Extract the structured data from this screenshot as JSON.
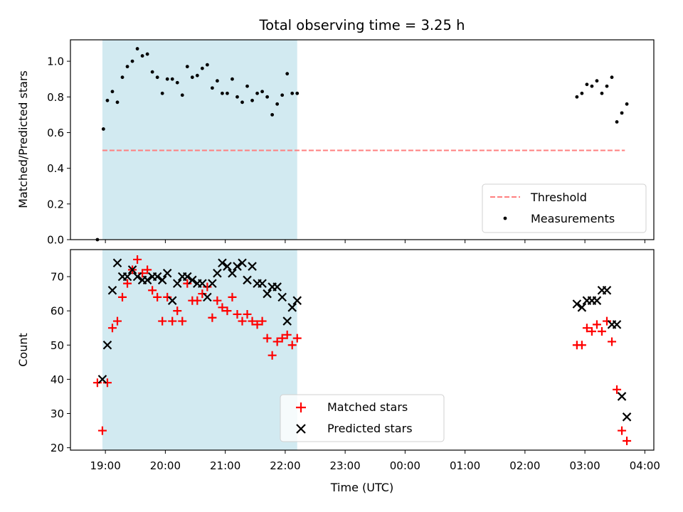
{
  "title": "Total observing time = 3.25 h",
  "xlabel": "Time (UTC)",
  "x_ticks": [
    "19:00",
    "20:00",
    "21:00",
    "22:00",
    "23:00",
    "00:00",
    "01:00",
    "02:00",
    "03:00",
    "04:00"
  ],
  "chart_data": [
    {
      "type": "scatter",
      "ylabel": "Matched/Predicted stars",
      "ylim": [
        0,
        1.12
      ],
      "y_ticks": [
        "0.0",
        "0.2",
        "0.4",
        "0.6",
        "0.8",
        "1.0"
      ],
      "legend_position": "lower-right",
      "shaded_span": {
        "x_start": "18:57",
        "x_end": "22:12",
        "color": "#add8e6"
      },
      "threshold": {
        "name": "Threshold",
        "y": 0.5,
        "x_start": "18:57",
        "x_end": "03:40",
        "color": "#ff7f7f",
        "style": "dashed"
      },
      "series": [
        {
          "name": "Measurements",
          "marker": "dot",
          "color": "#000000",
          "x": [
            "18:52",
            "18:58",
            "19:02",
            "19:07",
            "19:12",
            "19:17",
            "19:22",
            "19:27",
            "19:32",
            "19:37",
            "19:42",
            "19:47",
            "19:52",
            "19:57",
            "20:02",
            "20:07",
            "20:12",
            "20:17",
            "20:22",
            "20:27",
            "20:32",
            "20:37",
            "20:42",
            "20:47",
            "20:52",
            "20:57",
            "21:02",
            "21:07",
            "21:12",
            "21:17",
            "21:22",
            "21:27",
            "21:32",
            "21:37",
            "21:42",
            "21:47",
            "21:52",
            "21:57",
            "22:02",
            "22:07",
            "22:12",
            "02:52",
            "02:57",
            "03:02",
            "03:07",
            "03:12",
            "03:17",
            "03:22",
            "03:27",
            "03:32",
            "03:37",
            "03:42"
          ],
          "y": [
            0.0,
            0.62,
            0.78,
            0.83,
            0.77,
            0.91,
            0.97,
            1.0,
            1.07,
            1.03,
            1.04,
            0.94,
            0.91,
            0.82,
            0.9,
            0.9,
            0.88,
            0.81,
            0.97,
            0.91,
            0.92,
            0.96,
            0.98,
            0.85,
            0.89,
            0.82,
            0.82,
            0.9,
            0.8,
            0.77,
            0.86,
            0.78,
            0.82,
            0.83,
            0.8,
            0.7,
            0.76,
            0.81,
            0.93,
            0.82,
            0.82,
            0.8,
            0.82,
            0.87,
            0.86,
            0.89,
            0.82,
            0.86,
            0.91,
            0.66,
            0.71,
            0.76
          ]
        }
      ]
    },
    {
      "type": "scatter",
      "ylabel": "Count",
      "ylim": [
        19.3,
        77.9
      ],
      "y_ticks": [
        "20",
        "30",
        "40",
        "50",
        "60",
        "70"
      ],
      "legend_position": "lower-center",
      "shaded_span": {
        "x_start": "18:57",
        "x_end": "22:12",
        "color": "#add8e6"
      },
      "series": [
        {
          "name": "Matched stars",
          "marker": "plus",
          "color": "#ff0000",
          "x": [
            "18:52",
            "18:57",
            "19:02",
            "19:07",
            "19:12",
            "19:17",
            "19:22",
            "19:27",
            "19:32",
            "19:37",
            "19:42",
            "19:47",
            "19:52",
            "19:57",
            "20:02",
            "20:07",
            "20:12",
            "20:17",
            "20:22",
            "20:27",
            "20:32",
            "20:37",
            "20:42",
            "20:47",
            "20:52",
            "20:57",
            "21:02",
            "21:07",
            "21:12",
            "21:17",
            "21:22",
            "21:27",
            "21:32",
            "21:37",
            "21:42",
            "21:47",
            "21:52",
            "21:57",
            "22:02",
            "22:07",
            "22:12",
            "02:52",
            "02:57",
            "03:02",
            "03:07",
            "03:12",
            "03:17",
            "03:22",
            "03:27",
            "03:32",
            "03:37",
            "03:42"
          ],
          "y": [
            39,
            25,
            39,
            55,
            57,
            64,
            68,
            72,
            75,
            71,
            72,
            66,
            64,
            57,
            64,
            57,
            60,
            57,
            68,
            63,
            63,
            65,
            67,
            58,
            63,
            61,
            60,
            64,
            59,
            57,
            59,
            57,
            56,
            57,
            52,
            47,
            51,
            52,
            53,
            50,
            52,
            50,
            50,
            55,
            54,
            56,
            54,
            57,
            51,
            37,
            25,
            22
          ]
        },
        {
          "name": "Predicted stars",
          "marker": "x",
          "color": "#000000",
          "x": [
            "18:57",
            "19:02",
            "19:07",
            "19:12",
            "19:17",
            "19:22",
            "19:27",
            "19:32",
            "19:37",
            "19:42",
            "19:47",
            "19:52",
            "19:57",
            "20:02",
            "20:07",
            "20:12",
            "20:17",
            "20:22",
            "20:27",
            "20:32",
            "20:37",
            "20:42",
            "20:47",
            "20:52",
            "20:57",
            "21:02",
            "21:07",
            "21:12",
            "21:17",
            "21:22",
            "21:27",
            "21:32",
            "21:37",
            "21:42",
            "21:47",
            "21:52",
            "21:57",
            "22:02",
            "22:07",
            "22:12",
            "02:52",
            "02:57",
            "03:02",
            "03:07",
            "03:12",
            "03:17",
            "03:22",
            "03:27",
            "03:32",
            "03:37",
            "03:42"
          ],
          "y": [
            40,
            50,
            66,
            74,
            70,
            70,
            72,
            70,
            69,
            69,
            70,
            70,
            69,
            71,
            63,
            68,
            70,
            70,
            69,
            68,
            68,
            64,
            68,
            71,
            74,
            73,
            71,
            73,
            74,
            69,
            73,
            68,
            68,
            65,
            67,
            67,
            64,
            57,
            61,
            63,
            62,
            61,
            63,
            63,
            63,
            66,
            66,
            56,
            56,
            35,
            29
          ]
        }
      ]
    }
  ]
}
